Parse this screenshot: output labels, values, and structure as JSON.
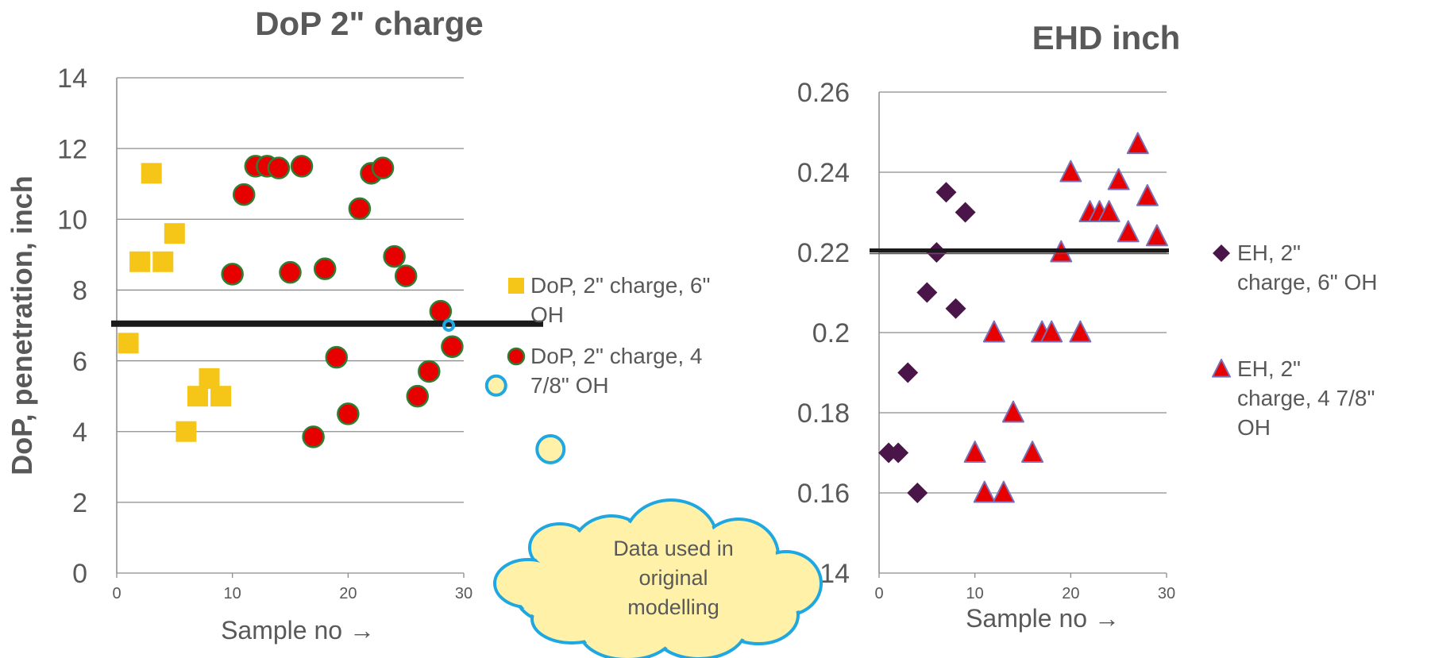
{
  "chart_data": [
    {
      "type": "scatter",
      "title": "DoP 2\" charge",
      "xlabel": "Sample no →",
      "ylabel": "DoP, penetration, inch",
      "xlim": [
        0,
        30
      ],
      "ylim": [
        0,
        14
      ],
      "x_ticks": [
        "0",
        "10",
        "20",
        "30"
      ],
      "y_ticks": [
        "0",
        "2",
        "4",
        "6",
        "8",
        "10",
        "12",
        "14"
      ],
      "grid": true,
      "legend_position": "right",
      "reference_line": {
        "y": 7.05
      },
      "series": [
        {
          "name": "DoP, 2\" charge, 6\" OH",
          "legend_lines": [
            "DoP, 2\" charge, 6\"",
            "OH"
          ],
          "marker": "square",
          "color": "#F5C518",
          "points": [
            [
              1,
              6.5
            ],
            [
              2,
              8.8
            ],
            [
              3,
              11.3
            ],
            [
              4,
              8.8
            ],
            [
              5,
              9.6
            ],
            [
              6,
              4.0
            ],
            [
              7,
              5.0
            ],
            [
              8,
              5.5
            ],
            [
              9,
              5.0
            ]
          ]
        },
        {
          "name": "DoP, 2\" charge, 4 7/8\" OH",
          "legend_lines": [
            "DoP, 2\" charge, 4",
            "7/8\" OH"
          ],
          "marker": "circle",
          "color": "#E60000",
          "edge": "#2E7D32",
          "points": [
            [
              10,
              8.45
            ],
            [
              11,
              10.7
            ],
            [
              12,
              11.5
            ],
            [
              13,
              11.5
            ],
            [
              14,
              11.45
            ],
            [
              15,
              8.5
            ],
            [
              16,
              11.5
            ],
            [
              17,
              3.85
            ],
            [
              18,
              8.6
            ],
            [
              19,
              6.1
            ],
            [
              20,
              4.5
            ],
            [
              21,
              10.3
            ],
            [
              22,
              11.3
            ],
            [
              23,
              11.45
            ],
            [
              24,
              8.95
            ],
            [
              25,
              8.4
            ],
            [
              26,
              5.0
            ],
            [
              27,
              5.7
            ],
            [
              28,
              7.4
            ],
            [
              29,
              6.4
            ]
          ]
        }
      ],
      "highlights": [
        {
          "x": 28.7,
          "y": 7.0,
          "size": "small"
        },
        {
          "x": 32.8,
          "y": 5.3,
          "size": "medium"
        },
        {
          "x": 37.5,
          "y": 3.5,
          "size": "large"
        }
      ]
    },
    {
      "type": "scatter",
      "title": "EHD inch",
      "xlabel": "Sample no →",
      "ylabel": "",
      "xlim": [
        0,
        30
      ],
      "ylim": [
        0.14,
        0.26
      ],
      "x_ticks": [
        "0",
        "10",
        "20",
        "30"
      ],
      "y_ticks": [
        "0.14",
        "0.16",
        "0.18",
        "0.2",
        "0.22",
        "0.24",
        "0.26"
      ],
      "grid": true,
      "legend_position": "right",
      "reference_line": {
        "y": 0.2205
      },
      "series": [
        {
          "name": "EH, 2\" charge, 6\" OH",
          "legend_lines": [
            "EH, 2\"",
            "charge, 6\" OH"
          ],
          "marker": "diamond",
          "color": "#4A1548",
          "points": [
            [
              1,
              0.17
            ],
            [
              2,
              0.17
            ],
            [
              3,
              0.19
            ],
            [
              4,
              0.16
            ],
            [
              5,
              0.21
            ],
            [
              6,
              0.22
            ],
            [
              7,
              0.235
            ],
            [
              8,
              0.206
            ],
            [
              9,
              0.23
            ]
          ]
        },
        {
          "name": "EH, 2\" charge, 4 7/8\" OH",
          "legend_lines": [
            "EH, 2\"",
            "charge, 4 7/8\"",
            "OH"
          ],
          "marker": "triangle",
          "color": "#E60000",
          "edge": "#7B6FB5",
          "points": [
            [
              10,
              0.17
            ],
            [
              11,
              0.16
            ],
            [
              12,
              0.2
            ],
            [
              13,
              0.16
            ],
            [
              14,
              0.18
            ],
            [
              16,
              0.17
            ],
            [
              17,
              0.2
            ],
            [
              18,
              0.2
            ],
            [
              19,
              0.22
            ],
            [
              20,
              0.24
            ],
            [
              21,
              0.2
            ],
            [
              22,
              0.23
            ],
            [
              23,
              0.23
            ],
            [
              24,
              0.23
            ],
            [
              25,
              0.238
            ],
            [
              26,
              0.225
            ],
            [
              27,
              0.247
            ],
            [
              28,
              0.234
            ],
            [
              29,
              0.224
            ]
          ]
        }
      ]
    }
  ],
  "callout": {
    "lines": [
      "Data used in",
      "original",
      "modelling"
    ]
  },
  "colors": {
    "grid": "#8C8C8C",
    "reference_line": "#1A1A1A",
    "highlight_ring": "#1EA7E1",
    "callout_fill": "#FFF2A8",
    "callout_border": "#1EA7E1",
    "text": "#595959"
  }
}
